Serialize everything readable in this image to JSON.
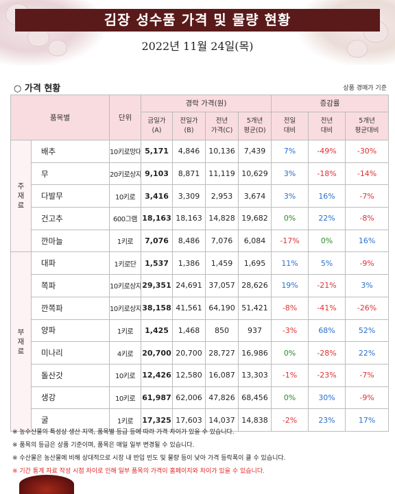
{
  "title": "김장 성수품 가격 및 물량 현황",
  "date": "2022년 11월 24일(목)",
  "section_title": "○ 가격 현황",
  "basis_note": "상품 경매가 기준",
  "headers": {
    "item": "품목별",
    "unit": "단위",
    "auction_price": "경락 가격(원)",
    "change_rate": "증감률",
    "today": "금일가\n(A)",
    "prev_day": "전일가\n(B)",
    "prev_year": "전년\n가격(C)",
    "five_year": "5개년\n평균(D)",
    "vs_prev_day": "전일\n대비",
    "vs_prev_year": "전년\n대비",
    "vs_five_year": "5개년\n평균대비"
  },
  "categories": {
    "main": "주\n재\n료",
    "sub": "부\n재\n료"
  },
  "rows": [
    {
      "name": "배추",
      "unit": "10키로망대",
      "a": "5,171",
      "b": "4,846",
      "c": "10,136",
      "d": "7,439",
      "r1": "7%",
      "r2": "-49%",
      "r3": "-30%"
    },
    {
      "name": "무",
      "unit": "20키로상자",
      "a": "9,103",
      "b": "8,871",
      "c": "11,119",
      "d": "10,629",
      "r1": "3%",
      "r2": "-18%",
      "r3": "-14%"
    },
    {
      "name": "다발무",
      "unit": "10키로",
      "a": "3,416",
      "b": "3,309",
      "c": "2,953",
      "d": "3,674",
      "r1": "3%",
      "r2": "16%",
      "r3": "-7%"
    },
    {
      "name": "건고추",
      "unit": "600그램",
      "a": "18,163",
      "b": "18,163",
      "c": "14,828",
      "d": "19,682",
      "r1": "0%",
      "r2": "22%",
      "r3": "-8%"
    },
    {
      "name": "깐마늘",
      "unit": "1키로",
      "a": "7,076",
      "b": "8,486",
      "c": "7,076",
      "d": "6,084",
      "r1": "-17%",
      "r2": "0%",
      "r3": "16%"
    },
    {
      "name": "대파",
      "unit": "1키로단",
      "a": "1,537",
      "b": "1,386",
      "c": "1,459",
      "d": "1,695",
      "r1": "11%",
      "r2": "5%",
      "r3": "-9%"
    },
    {
      "name": "쪽파",
      "unit": "10키로상자",
      "a": "29,351",
      "b": "24,691",
      "c": "37,057",
      "d": "28,626",
      "r1": "19%",
      "r2": "-21%",
      "r3": "3%"
    },
    {
      "name": "깐쪽파",
      "unit": "10키로상자",
      "a": "38,158",
      "b": "41,561",
      "c": "64,190",
      "d": "51,421",
      "r1": "-8%",
      "r2": "-41%",
      "r3": "-26%"
    },
    {
      "name": "양파",
      "unit": "1키로",
      "a": "1,425",
      "b": "1,468",
      "c": "850",
      "d": "937",
      "r1": "-3%",
      "r2": "68%",
      "r3": "52%"
    },
    {
      "name": "미나리",
      "unit": "4키로",
      "a": "20,700",
      "b": "20,700",
      "c": "28,727",
      "d": "16,986",
      "r1": "0%",
      "r2": "-28%",
      "r3": "22%"
    },
    {
      "name": "돌산갓",
      "unit": "10키로",
      "a": "12,426",
      "b": "12,580",
      "c": "16,087",
      "d": "13,303",
      "r1": "-1%",
      "r2": "-23%",
      "r3": "-7%"
    },
    {
      "name": "생강",
      "unit": "10키로",
      "a": "61,987",
      "b": "62,006",
      "c": "47,826",
      "d": "68,456",
      "r1": "0%",
      "r2": "30%",
      "r3": "-9%"
    },
    {
      "name": "굴",
      "unit": "1키로",
      "a": "17,325",
      "b": "17,603",
      "c": "14,037",
      "d": "14,838",
      "r1": "-2%",
      "r2": "23%",
      "r3": "17%"
    }
  ],
  "notes": [
    "※ 농수산물의 특성상 생산 지역, 품목별 등급 등에 따라 가격 차이가 있을 수 있습니다.",
    "※ 품목의 등급은 상품 기준이며, 품목은 매일 일부 변경될 수 있습니다.",
    "※ 수산물은 농산물에 비해 상대적으로 시장 내 반입 빈도 및 물량 등이 낮아 가격 등락폭이 클 수 있습니다.",
    "※ 기간 통계 자료 작성 시점 차이로 인해 일부 품목의 가격이 홈페이지와 차이가 있을 수 있습니다."
  ],
  "colors": {
    "title_bg": "#5a1a1a",
    "header_bg": "#f9dcdf",
    "positive": "#2a6fd0",
    "zero": "#2a8a2a",
    "negative": "#e03030"
  }
}
